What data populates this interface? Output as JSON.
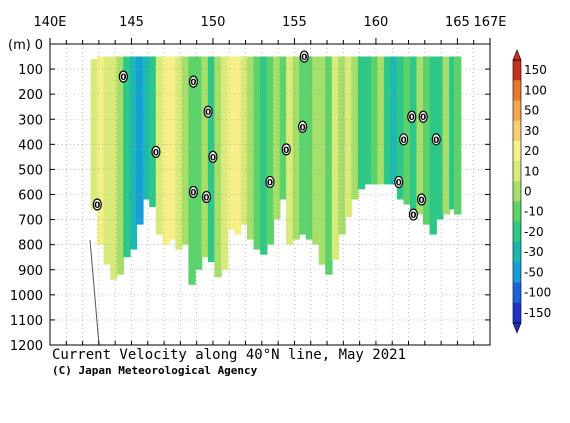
{
  "chart_data": {
    "type": "heatmap",
    "title": "Current Velocity along 40°N line, May 2021",
    "credit": "(C) Japan Meteorological Agency",
    "x_axis": {
      "range": [
        140,
        167
      ],
      "tick_labels": [
        {
          "x": 140,
          "label": "140E"
        },
        {
          "x": 145,
          "label": "145"
        },
        {
          "x": 150,
          "label": "150"
        },
        {
          "x": 155,
          "label": "155"
        },
        {
          "x": 160,
          "label": "160"
        },
        {
          "x": 165,
          "label": "165"
        },
        {
          "x": 167,
          "label": "167E"
        }
      ]
    },
    "y_axis": {
      "unit_label": "(m)",
      "range": [
        0,
        1200
      ],
      "inverted": true,
      "ticks": [
        0,
        100,
        200,
        300,
        400,
        500,
        600,
        700,
        800,
        900,
        1000,
        1100,
        1200
      ]
    },
    "grid": true,
    "colorbar": {
      "placement": "right",
      "levels": [
        150,
        100,
        50,
        30,
        20,
        10,
        0,
        -10,
        -20,
        -30,
        -50,
        -100,
        -150
      ],
      "colors": [
        "#c8321e",
        "#e8782d",
        "#f0a64a",
        "#f5d070",
        "#f5f088",
        "#d8ea7a",
        "#a6de6a",
        "#5cd26a",
        "#2ec886",
        "#1ab8b0",
        "#179ed8",
        "#1a66d8",
        "#1e32c8"
      ]
    },
    "columns": [
      {
        "lon": 142.7,
        "top": 60,
        "bottom": 660,
        "value": 18
      },
      {
        "lon": 143.1,
        "top": 50,
        "bottom": 800,
        "value": 25
      },
      {
        "lon": 143.5,
        "top": 50,
        "bottom": 880,
        "value": 15
      },
      {
        "lon": 143.9,
        "top": 50,
        "bottom": 940,
        "value": 12
      },
      {
        "lon": 144.3,
        "top": 50,
        "bottom": 920,
        "value": 8
      },
      {
        "lon": 144.7,
        "top": 50,
        "bottom": 850,
        "value": -12
      },
      {
        "lon": 145.1,
        "top": 50,
        "bottom": 820,
        "value": -28
      },
      {
        "lon": 145.5,
        "top": 50,
        "bottom": 720,
        "value": -45
      },
      {
        "lon": 145.9,
        "top": 50,
        "bottom": 620,
        "value": -28
      },
      {
        "lon": 146.3,
        "top": 50,
        "bottom": 650,
        "value": -18
      },
      {
        "lon": 146.7,
        "top": 50,
        "bottom": 760,
        "value": 14
      },
      {
        "lon": 147.1,
        "top": 50,
        "bottom": 800,
        "value": 22
      },
      {
        "lon": 147.5,
        "top": 50,
        "bottom": 780,
        "value": 28
      },
      {
        "lon": 147.9,
        "top": 50,
        "bottom": 820,
        "value": 12
      },
      {
        "lon": 148.3,
        "top": 50,
        "bottom": 800,
        "value": 4
      },
      {
        "lon": 148.7,
        "top": 50,
        "bottom": 960,
        "value": -8
      },
      {
        "lon": 149.1,
        "top": 50,
        "bottom": 900,
        "value": -4
      },
      {
        "lon": 149.5,
        "top": 50,
        "bottom": 850,
        "value": 6
      },
      {
        "lon": 149.9,
        "top": 50,
        "bottom": 870,
        "value": -14
      },
      {
        "lon": 150.3,
        "top": 50,
        "bottom": 930,
        "value": 3
      },
      {
        "lon": 150.7,
        "top": 50,
        "bottom": 900,
        "value": 16
      },
      {
        "lon": 151.1,
        "top": 50,
        "bottom": 740,
        "value": 24
      },
      {
        "lon": 151.5,
        "top": 50,
        "bottom": 760,
        "value": 20
      },
      {
        "lon": 151.9,
        "top": 50,
        "bottom": 720,
        "value": 14
      },
      {
        "lon": 152.3,
        "top": 50,
        "bottom": 780,
        "value": 9
      },
      {
        "lon": 152.7,
        "top": 50,
        "bottom": 820,
        "value": -6
      },
      {
        "lon": 153.1,
        "top": 50,
        "bottom": 840,
        "value": -16
      },
      {
        "lon": 153.5,
        "top": 50,
        "bottom": 800,
        "value": -9
      },
      {
        "lon": 153.9,
        "top": 50,
        "bottom": 700,
        "value": 4
      },
      {
        "lon": 154.3,
        "top": 50,
        "bottom": 620,
        "value": -4
      },
      {
        "lon": 154.7,
        "top": 50,
        "bottom": 800,
        "value": 12
      },
      {
        "lon": 155.1,
        "top": 50,
        "bottom": 780,
        "value": 6
      },
      {
        "lon": 155.5,
        "top": 50,
        "bottom": 760,
        "value": -7
      },
      {
        "lon": 155.9,
        "top": 50,
        "bottom": 780,
        "value": -2
      },
      {
        "lon": 156.3,
        "top": 50,
        "bottom": 800,
        "value": 8
      },
      {
        "lon": 156.7,
        "top": 50,
        "bottom": 880,
        "value": 4
      },
      {
        "lon": 157.1,
        "top": 50,
        "bottom": 920,
        "value": -6
      },
      {
        "lon": 157.5,
        "top": 50,
        "bottom": 860,
        "value": 14
      },
      {
        "lon": 157.9,
        "top": 50,
        "bottom": 760,
        "value": 8
      },
      {
        "lon": 158.3,
        "top": 50,
        "bottom": 690,
        "value": 18
      },
      {
        "lon": 158.7,
        "top": 50,
        "bottom": 620,
        "value": 4
      },
      {
        "lon": 159.1,
        "top": 50,
        "bottom": 580,
        "value": -12
      },
      {
        "lon": 159.5,
        "top": 50,
        "bottom": 560,
        "value": -18
      },
      {
        "lon": 159.9,
        "top": 50,
        "bottom": 560,
        "value": -8
      },
      {
        "lon": 160.3,
        "top": 50,
        "bottom": 560,
        "value": 6
      },
      {
        "lon": 160.7,
        "top": 50,
        "bottom": 560,
        "value": -14
      },
      {
        "lon": 161.1,
        "top": 50,
        "bottom": 560,
        "value": -22
      },
      {
        "lon": 161.5,
        "top": 50,
        "bottom": 620,
        "value": -12
      },
      {
        "lon": 161.9,
        "top": 50,
        "bottom": 640,
        "value": -6
      },
      {
        "lon": 162.3,
        "top": 50,
        "bottom": 700,
        "value": -16
      },
      {
        "lon": 162.7,
        "top": 50,
        "bottom": 680,
        "value": 7
      },
      {
        "lon": 163.1,
        "top": 50,
        "bottom": 720,
        "value": -9
      },
      {
        "lon": 163.5,
        "top": 50,
        "bottom": 760,
        "value": -20
      },
      {
        "lon": 163.9,
        "top": 50,
        "bottom": 700,
        "value": -11
      },
      {
        "lon": 164.3,
        "top": 50,
        "bottom": 680,
        "value": 4
      },
      {
        "lon": 164.7,
        "top": 50,
        "bottom": 660,
        "value": -14
      },
      {
        "lon": 165.0,
        "top": 50,
        "bottom": 680,
        "value": -4
      }
    ],
    "contour_labels": [
      {
        "lon": 142.9,
        "depth": 640,
        "label": "0"
      },
      {
        "lon": 144.5,
        "depth": 130,
        "label": "0"
      },
      {
        "lon": 146.5,
        "depth": 430,
        "label": "0"
      },
      {
        "lon": 148.8,
        "depth": 150,
        "label": "0"
      },
      {
        "lon": 148.8,
        "depth": 590,
        "label": "0"
      },
      {
        "lon": 149.6,
        "depth": 610,
        "label": "0"
      },
      {
        "lon": 149.7,
        "depth": 270,
        "label": "0"
      },
      {
        "lon": 150.0,
        "depth": 450,
        "label": "0"
      },
      {
        "lon": 153.5,
        "depth": 550,
        "label": "0"
      },
      {
        "lon": 154.5,
        "depth": 420,
        "label": "0"
      },
      {
        "lon": 155.5,
        "depth": 330,
        "label": "0"
      },
      {
        "lon": 155.6,
        "depth": 50,
        "label": "0"
      },
      {
        "lon": 161.7,
        "depth": 380,
        "label": "0"
      },
      {
        "lon": 161.4,
        "depth": 550,
        "label": "0"
      },
      {
        "lon": 162.2,
        "depth": 290,
        "label": "0"
      },
      {
        "lon": 162.9,
        "depth": 290,
        "label": "0"
      },
      {
        "lon": 162.3,
        "depth": 680,
        "label": "0"
      },
      {
        "lon": 162.8,
        "depth": 620,
        "label": "0"
      },
      {
        "lon": 163.7,
        "depth": 380,
        "label": "0"
      }
    ]
  }
}
